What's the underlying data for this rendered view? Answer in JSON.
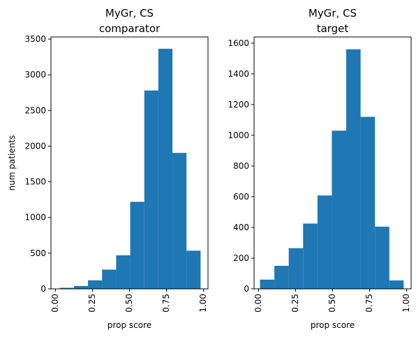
{
  "chart_data": [
    {
      "type": "bar",
      "title_line1": "MyGr, CS",
      "title_line2": "comparator",
      "xlabel": "prop score",
      "ylabel": "num patients",
      "xlim": [
        -0.03,
        1.03
      ],
      "ylim": [
        0,
        3530
      ],
      "xticks": [
        "0.00",
        "0.25",
        "0.50",
        "0.75",
        "1.00"
      ],
      "xtick_values": [
        0,
        0.25,
        0.5,
        0.75,
        1.0
      ],
      "yticks": [
        "0",
        "500",
        "1000",
        "1500",
        "2000",
        "2500",
        "3000",
        "3500"
      ],
      "ytick_values": [
        0,
        500,
        1000,
        1500,
        2000,
        2500,
        3000,
        3500
      ],
      "bin_edges": [
        0.03,
        0.125,
        0.22,
        0.315,
        0.41,
        0.505,
        0.6,
        0.695,
        0.79,
        0.885,
        0.98
      ],
      "values": [
        15,
        40,
        120,
        270,
        470,
        1220,
        2780,
        3365,
        1905,
        535
      ],
      "color": "#1f77b4"
    },
    {
      "type": "bar",
      "title_line1": "MyGr, CS",
      "title_line2": "target",
      "xlabel": "prop score",
      "ylabel": "",
      "xlim": [
        -0.03,
        1.03
      ],
      "ylim": [
        0,
        1640
      ],
      "xticks": [
        "0.00",
        "0.25",
        "0.50",
        "0.75",
        "1.00"
      ],
      "xtick_values": [
        0,
        0.25,
        0.5,
        0.75,
        1.0
      ],
      "yticks": [
        "0",
        "200",
        "400",
        "600",
        "800",
        "1000",
        "1200",
        "1400",
        "1600"
      ],
      "ytick_values": [
        0,
        200,
        400,
        600,
        800,
        1000,
        1200,
        1400,
        1600
      ],
      "bin_edges": [
        0.01,
        0.107,
        0.204,
        0.301,
        0.398,
        0.495,
        0.592,
        0.689,
        0.786,
        0.883,
        0.98
      ],
      "values": [
        60,
        150,
        265,
        425,
        608,
        1030,
        1560,
        1120,
        405,
        55
      ],
      "color": "#1f77b4"
    }
  ]
}
